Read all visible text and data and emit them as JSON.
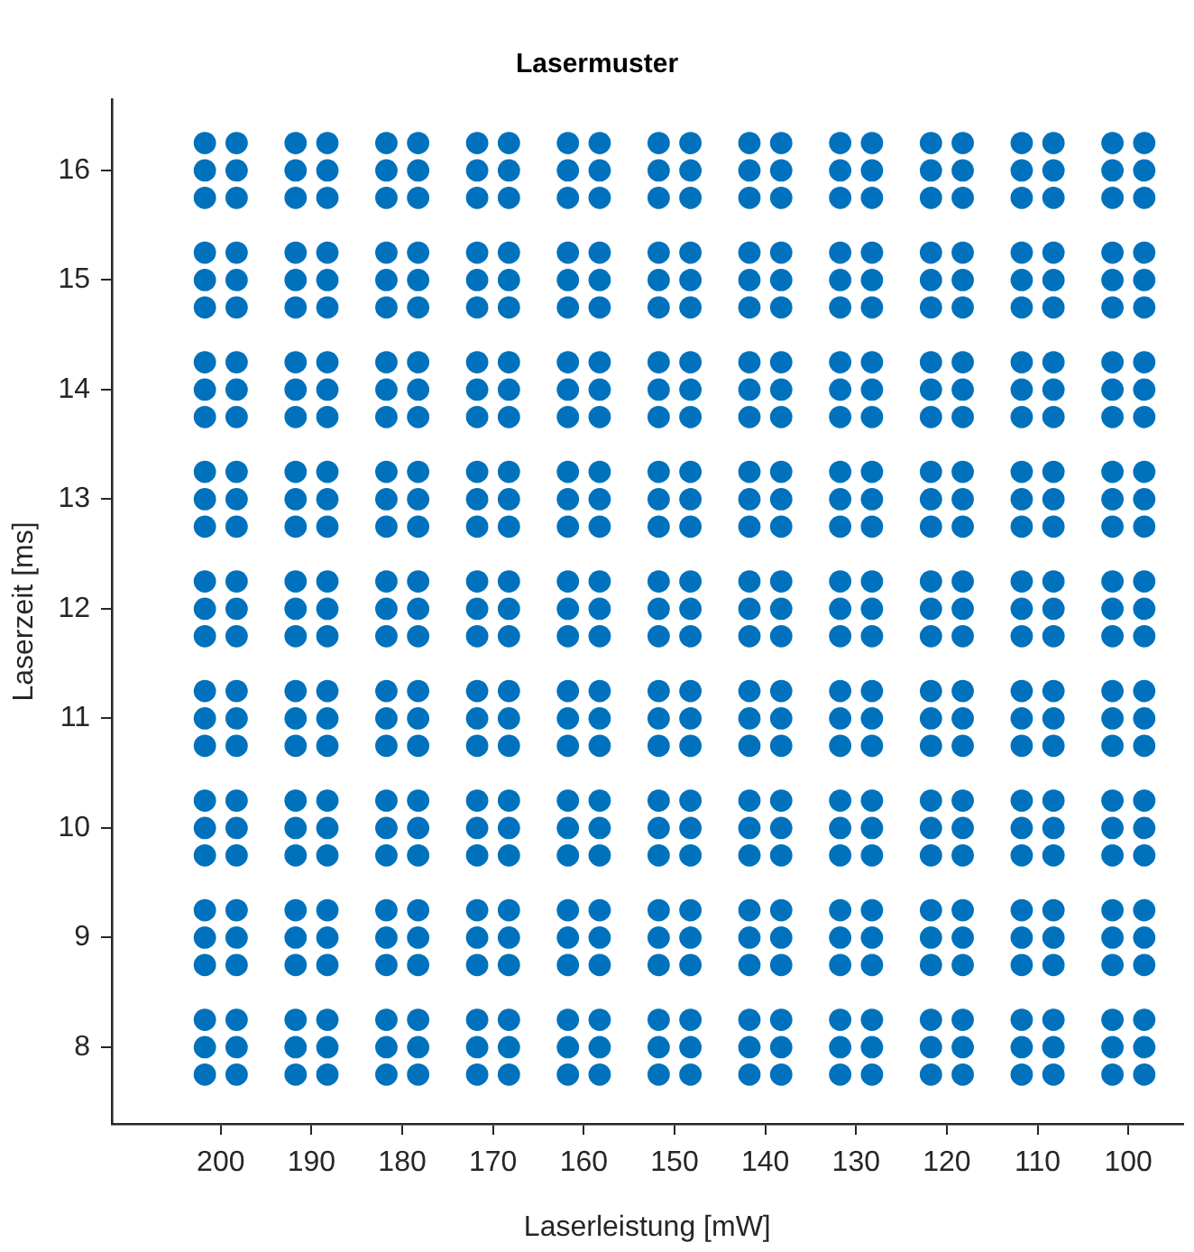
{
  "chart_data": {
    "type": "scatter",
    "title": "Lasermuster",
    "xlabel": "Laserleistung [mW]",
    "ylabel": "Laserzeit [ms]",
    "marker": "circle",
    "xlim": [
      212,
      94
    ],
    "ylim": [
      7.3,
      16.65
    ],
    "xticks": [
      200,
      190,
      180,
      170,
      160,
      150,
      140,
      130,
      120,
      110,
      100
    ],
    "yticks": [
      8,
      9,
      10,
      11,
      12,
      13,
      14,
      15,
      16
    ],
    "x": [
      201.75,
      198.25,
      191.75,
      188.25,
      181.75,
      178.25,
      171.75,
      168.25,
      161.75,
      158.25,
      151.75,
      148.25,
      141.75,
      138.25,
      131.75,
      128.25,
      121.75,
      118.25,
      111.75,
      108.25,
      101.75,
      98.25
    ],
    "series": [
      {
        "color": "#0072bd",
        "values": [
          16.25,
          16.25,
          16.25,
          16.25,
          16.25,
          16.25,
          16.25,
          16.25,
          16.25,
          16.25,
          16.25,
          16.25,
          16.25,
          16.25,
          16.25,
          16.25,
          16.25,
          16.25,
          16.25,
          16.25,
          16.25,
          16.25
        ]
      },
      {
        "color": "#0072bd",
        "values": [
          16,
          16,
          16,
          16,
          16,
          16,
          16,
          16,
          16,
          16,
          16,
          16,
          16,
          16,
          16,
          16,
          16,
          16,
          16,
          16,
          16,
          16
        ]
      },
      {
        "color": "#0072bd",
        "values": [
          15.75,
          15.75,
          15.75,
          15.75,
          15.75,
          15.75,
          15.75,
          15.75,
          15.75,
          15.75,
          15.75,
          15.75,
          15.75,
          15.75,
          15.75,
          15.75,
          15.75,
          15.75,
          15.75,
          15.75,
          15.75,
          15.75
        ]
      },
      {
        "color": "#0072bd",
        "values": [
          15.25,
          15.25,
          15.25,
          15.25,
          15.25,
          15.25,
          15.25,
          15.25,
          15.25,
          15.25,
          15.25,
          15.25,
          15.25,
          15.25,
          15.25,
          15.25,
          15.25,
          15.25,
          15.25,
          15.25,
          15.25,
          15.25
        ]
      },
      {
        "color": "#0072bd",
        "values": [
          15,
          15,
          15,
          15,
          15,
          15,
          15,
          15,
          15,
          15,
          15,
          15,
          15,
          15,
          15,
          15,
          15,
          15,
          15,
          15,
          15,
          15
        ]
      },
      {
        "color": "#0072bd",
        "values": [
          14.75,
          14.75,
          14.75,
          14.75,
          14.75,
          14.75,
          14.75,
          14.75,
          14.75,
          14.75,
          14.75,
          14.75,
          14.75,
          14.75,
          14.75,
          14.75,
          14.75,
          14.75,
          14.75,
          14.75,
          14.75,
          14.75
        ]
      },
      {
        "color": "#0072bd",
        "values": [
          14.25,
          14.25,
          14.25,
          14.25,
          14.25,
          14.25,
          14.25,
          14.25,
          14.25,
          14.25,
          14.25,
          14.25,
          14.25,
          14.25,
          14.25,
          14.25,
          14.25,
          14.25,
          14.25,
          14.25,
          14.25,
          14.25
        ]
      },
      {
        "color": "#0072bd",
        "values": [
          14,
          14,
          14,
          14,
          14,
          14,
          14,
          14,
          14,
          14,
          14,
          14,
          14,
          14,
          14,
          14,
          14,
          14,
          14,
          14,
          14,
          14
        ]
      },
      {
        "color": "#0072bd",
        "values": [
          13.75,
          13.75,
          13.75,
          13.75,
          13.75,
          13.75,
          13.75,
          13.75,
          13.75,
          13.75,
          13.75,
          13.75,
          13.75,
          13.75,
          13.75,
          13.75,
          13.75,
          13.75,
          13.75,
          13.75,
          13.75,
          13.75
        ]
      },
      {
        "color": "#0072bd",
        "values": [
          13.25,
          13.25,
          13.25,
          13.25,
          13.25,
          13.25,
          13.25,
          13.25,
          13.25,
          13.25,
          13.25,
          13.25,
          13.25,
          13.25,
          13.25,
          13.25,
          13.25,
          13.25,
          13.25,
          13.25,
          13.25,
          13.25
        ]
      },
      {
        "color": "#0072bd",
        "values": [
          13,
          13,
          13,
          13,
          13,
          13,
          13,
          13,
          13,
          13,
          13,
          13,
          13,
          13,
          13,
          13,
          13,
          13,
          13,
          13,
          13,
          13
        ]
      },
      {
        "color": "#0072bd",
        "values": [
          12.75,
          12.75,
          12.75,
          12.75,
          12.75,
          12.75,
          12.75,
          12.75,
          12.75,
          12.75,
          12.75,
          12.75,
          12.75,
          12.75,
          12.75,
          12.75,
          12.75,
          12.75,
          12.75,
          12.75,
          12.75,
          12.75
        ]
      },
      {
        "color": "#0072bd",
        "values": [
          12.25,
          12.25,
          12.25,
          12.25,
          12.25,
          12.25,
          12.25,
          12.25,
          12.25,
          12.25,
          12.25,
          12.25,
          12.25,
          12.25,
          12.25,
          12.25,
          12.25,
          12.25,
          12.25,
          12.25,
          12.25,
          12.25
        ]
      },
      {
        "color": "#0072bd",
        "values": [
          12,
          12,
          12,
          12,
          12,
          12,
          12,
          12,
          12,
          12,
          12,
          12,
          12,
          12,
          12,
          12,
          12,
          12,
          12,
          12,
          12,
          12
        ]
      },
      {
        "color": "#0072bd",
        "values": [
          11.75,
          11.75,
          11.75,
          11.75,
          11.75,
          11.75,
          11.75,
          11.75,
          11.75,
          11.75,
          11.75,
          11.75,
          11.75,
          11.75,
          11.75,
          11.75,
          11.75,
          11.75,
          11.75,
          11.75,
          11.75,
          11.75
        ]
      },
      {
        "color": "#0072bd",
        "values": [
          11.25,
          11.25,
          11.25,
          11.25,
          11.25,
          11.25,
          11.25,
          11.25,
          11.25,
          11.25,
          11.25,
          11.25,
          11.25,
          11.25,
          11.25,
          11.25,
          11.25,
          11.25,
          11.25,
          11.25,
          11.25,
          11.25
        ]
      },
      {
        "color": "#0072bd",
        "values": [
          11,
          11,
          11,
          11,
          11,
          11,
          11,
          11,
          11,
          11,
          11,
          11,
          11,
          11,
          11,
          11,
          11,
          11,
          11,
          11,
          11,
          11
        ]
      },
      {
        "color": "#0072bd",
        "values": [
          10.75,
          10.75,
          10.75,
          10.75,
          10.75,
          10.75,
          10.75,
          10.75,
          10.75,
          10.75,
          10.75,
          10.75,
          10.75,
          10.75,
          10.75,
          10.75,
          10.75,
          10.75,
          10.75,
          10.75,
          10.75,
          10.75
        ]
      },
      {
        "color": "#0072bd",
        "values": [
          10.25,
          10.25,
          10.25,
          10.25,
          10.25,
          10.25,
          10.25,
          10.25,
          10.25,
          10.25,
          10.25,
          10.25,
          10.25,
          10.25,
          10.25,
          10.25,
          10.25,
          10.25,
          10.25,
          10.25,
          10.25,
          10.25
        ]
      },
      {
        "color": "#0072bd",
        "values": [
          10,
          10,
          10,
          10,
          10,
          10,
          10,
          10,
          10,
          10,
          10,
          10,
          10,
          10,
          10,
          10,
          10,
          10,
          10,
          10,
          10,
          10
        ]
      },
      {
        "color": "#0072bd",
        "values": [
          9.75,
          9.75,
          9.75,
          9.75,
          9.75,
          9.75,
          9.75,
          9.75,
          9.75,
          9.75,
          9.75,
          9.75,
          9.75,
          9.75,
          9.75,
          9.75,
          9.75,
          9.75,
          9.75,
          9.75,
          9.75,
          9.75
        ]
      },
      {
        "color": "#0072bd",
        "values": [
          9.25,
          9.25,
          9.25,
          9.25,
          9.25,
          9.25,
          9.25,
          9.25,
          9.25,
          9.25,
          9.25,
          9.25,
          9.25,
          9.25,
          9.25,
          9.25,
          9.25,
          9.25,
          9.25,
          9.25,
          9.25,
          9.25
        ]
      },
      {
        "color": "#0072bd",
        "values": [
          9,
          9,
          9,
          9,
          9,
          9,
          9,
          9,
          9,
          9,
          9,
          9,
          9,
          9,
          9,
          9,
          9,
          9,
          9,
          9,
          9,
          9
        ]
      },
      {
        "color": "#0072bd",
        "values": [
          8.75,
          8.75,
          8.75,
          8.75,
          8.75,
          8.75,
          8.75,
          8.75,
          8.75,
          8.75,
          8.75,
          8.75,
          8.75,
          8.75,
          8.75,
          8.75,
          8.75,
          8.75,
          8.75,
          8.75,
          8.75,
          8.75
        ]
      },
      {
        "color": "#0072bd",
        "values": [
          8.25,
          8.25,
          8.25,
          8.25,
          8.25,
          8.25,
          8.25,
          8.25,
          8.25,
          8.25,
          8.25,
          8.25,
          8.25,
          8.25,
          8.25,
          8.25,
          8.25,
          8.25,
          8.25,
          8.25,
          8.25,
          8.25
        ]
      },
      {
        "color": "#0072bd",
        "values": [
          8,
          8,
          8,
          8,
          8,
          8,
          8,
          8,
          8,
          8,
          8,
          8,
          8,
          8,
          8,
          8,
          8,
          8,
          8,
          8,
          8,
          8
        ]
      },
      {
        "color": "#0072bd",
        "values": [
          7.75,
          7.75,
          7.75,
          7.75,
          7.75,
          7.75,
          7.75,
          7.75,
          7.75,
          7.75,
          7.75,
          7.75,
          7.75,
          7.75,
          7.75,
          7.75,
          7.75,
          7.75,
          7.75,
          7.75,
          7.75,
          7.75
        ]
      }
    ]
  }
}
